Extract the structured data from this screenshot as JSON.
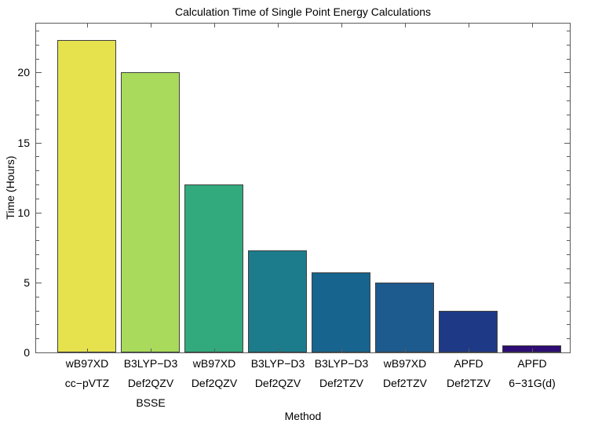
{
  "chart_data": {
    "type": "bar",
    "title": "Calculation Time of Single Point Energy Calculations",
    "xlabel": "Method",
    "ylabel": "Time (Hours)",
    "ylim": [
      0,
      23.5
    ],
    "yticks_major": [
      0,
      5,
      10,
      15,
      20
    ],
    "minor_tick_step": 1,
    "grid": false,
    "framed": true,
    "legend": "none",
    "categories": [
      [
        "wB97XD",
        "cc−pVTZ"
      ],
      [
        "B3LYP−D3",
        "Def2QZV",
        "BSSE"
      ],
      [
        "wB97XD",
        "Def2QZV"
      ],
      [
        "B3LYP−D3",
        "Def2QZV"
      ],
      [
        "B3LYP−D3",
        "Def2TZV"
      ],
      [
        "wB97XD",
        "Def2TZV"
      ],
      [
        "APFD",
        "Def2TZV"
      ],
      [
        "APFD",
        "6−31G(d)"
      ]
    ],
    "values": [
      22.3,
      20,
      12,
      7.3,
      5.7,
      5,
      3,
      0.5
    ],
    "bar_colors": [
      "#e5e24e",
      "#a9da5c",
      "#32aa7e",
      "#1c7c8c",
      "#17648f",
      "#1d5a8e",
      "#1e3a87",
      "#2d0d74"
    ],
    "bar_edge_color": "#3f3f3f",
    "frame_color": "#5a5a5a",
    "text_color": "#000000"
  }
}
